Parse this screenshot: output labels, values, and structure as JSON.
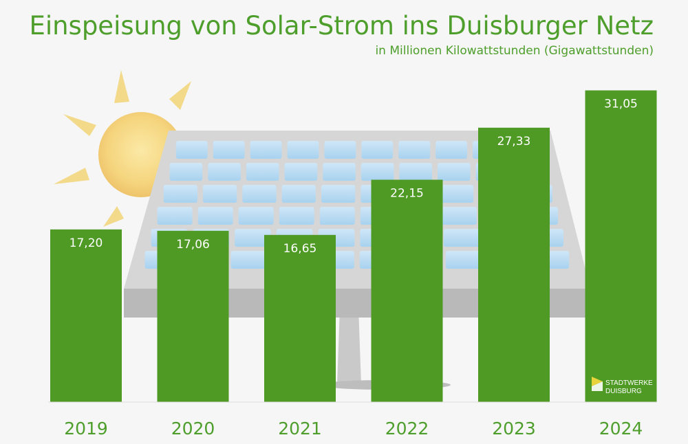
{
  "title": "Einspeisung von Solar-Strom ins Duisburger Netz",
  "subtitle": "in Millionen Kilowattstunden (Gigawattstunden)",
  "logo": {
    "line1": "STADTWERKE",
    "line2": "DUISBURG"
  },
  "colors": {
    "bar": "#4e9a25",
    "text": "#4e9e2c",
    "label": "#ffffff"
  },
  "chart_data": {
    "type": "bar",
    "title": "Einspeisung von Solar-Strom ins Duisburger Netz",
    "subtitle": "in Millionen Kilowattstunden (Gigawattstunden)",
    "categories": [
      "2019",
      "2020",
      "2021",
      "2022",
      "2023",
      "2024"
    ],
    "values": [
      17.2,
      17.06,
      16.65,
      22.15,
      27.33,
      31.05
    ],
    "value_labels": [
      "17,20",
      "17,06",
      "16,65",
      "22,15",
      "27,33",
      "31,05"
    ],
    "xlabel": "",
    "ylabel": "",
    "ylim": [
      0,
      33
    ],
    "grid": false,
    "legend": "none"
  }
}
